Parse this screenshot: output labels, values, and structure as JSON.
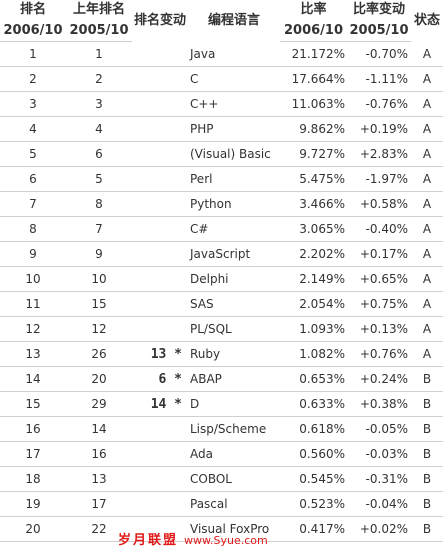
{
  "header": {
    "rank_label": "排名",
    "rank_period": "2006/10",
    "last_rank_label": "上年排名",
    "last_rank_period": "2005/10",
    "change_label": "排名变动",
    "language_label": "编程语言",
    "ratio_label": "比率",
    "ratio_period": "2006/10",
    "ratio_change_label": "比率变动",
    "ratio_change_period": "2005/10",
    "status_label": "状态"
  },
  "rows": [
    {
      "rank": "1",
      "last": "1",
      "change": "",
      "language": "Java",
      "ratio": "21.172%",
      "delta": "-0.70%",
      "status": "A"
    },
    {
      "rank": "2",
      "last": "2",
      "change": "",
      "language": "C",
      "ratio": "17.664%",
      "delta": "-1.11%",
      "status": "A"
    },
    {
      "rank": "3",
      "last": "3",
      "change": "",
      "language": "C++",
      "ratio": "11.063%",
      "delta": "-0.76%",
      "status": "A"
    },
    {
      "rank": "4",
      "last": "4",
      "change": "",
      "language": "PHP",
      "ratio": "9.862%",
      "delta": "+0.19%",
      "status": "A"
    },
    {
      "rank": "5",
      "last": "6",
      "change": "",
      "language": "(Visual) Basic",
      "ratio": "9.727%",
      "delta": "+2.83%",
      "status": "A"
    },
    {
      "rank": "6",
      "last": "5",
      "change": "",
      "language": "Perl",
      "ratio": "5.475%",
      "delta": "-1.97%",
      "status": "A"
    },
    {
      "rank": "7",
      "last": "8",
      "change": "",
      "language": "Python",
      "ratio": "3.466%",
      "delta": "+0.58%",
      "status": "A"
    },
    {
      "rank": "8",
      "last": "7",
      "change": "",
      "language": "C#",
      "ratio": "3.065%",
      "delta": "-0.40%",
      "status": "A"
    },
    {
      "rank": "9",
      "last": "9",
      "change": "",
      "language": "JavaScript",
      "ratio": "2.202%",
      "delta": "+0.17%",
      "status": "A"
    },
    {
      "rank": "10",
      "last": "10",
      "change": "",
      "language": "Delphi",
      "ratio": "2.149%",
      "delta": "+0.65%",
      "status": "A"
    },
    {
      "rank": "11",
      "last": "15",
      "change": "",
      "language": "SAS",
      "ratio": "2.054%",
      "delta": "+0.75%",
      "status": "A"
    },
    {
      "rank": "12",
      "last": "12",
      "change": "",
      "language": "PL/SQL",
      "ratio": "1.093%",
      "delta": "+0.13%",
      "status": "A"
    },
    {
      "rank": "13",
      "last": "26",
      "change": "13 *",
      "language": "Ruby",
      "ratio": "1.082%",
      "delta": "+0.76%",
      "status": "A"
    },
    {
      "rank": "14",
      "last": "20",
      "change": "6 *",
      "language": "ABAP",
      "ratio": "0.653%",
      "delta": "+0.24%",
      "status": "B"
    },
    {
      "rank": "15",
      "last": "29",
      "change": "14 *",
      "language": "D",
      "ratio": "0.633%",
      "delta": "+0.38%",
      "status": "B"
    },
    {
      "rank": "16",
      "last": "14",
      "change": "",
      "language": "Lisp/Scheme",
      "ratio": "0.618%",
      "delta": "-0.05%",
      "status": "B"
    },
    {
      "rank": "17",
      "last": "16",
      "change": "",
      "language": "Ada",
      "ratio": "0.560%",
      "delta": "-0.03%",
      "status": "B"
    },
    {
      "rank": "18",
      "last": "13",
      "change": "",
      "language": "COBOL",
      "ratio": "0.545%",
      "delta": "-0.31%",
      "status": "B"
    },
    {
      "rank": "19",
      "last": "17",
      "change": "",
      "language": "Pascal",
      "ratio": "0.523%",
      "delta": "-0.04%",
      "status": "B"
    },
    {
      "rank": "20",
      "last": "22",
      "change": "",
      "language": "Visual FoxPro",
      "ratio": "0.417%",
      "delta": "+0.02%",
      "status": "B"
    }
  ],
  "watermark": {
    "text": "岁月联盟",
    "site": "www.Syue.com",
    "color": "#e01818"
  }
}
